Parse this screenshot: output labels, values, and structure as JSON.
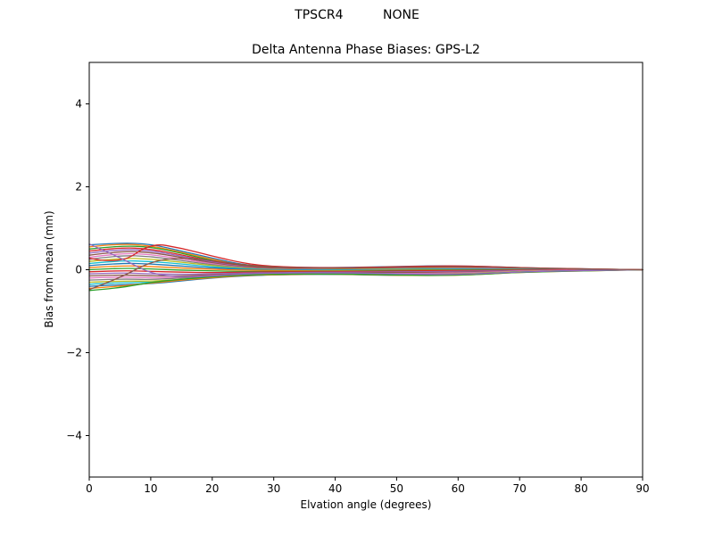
{
  "chart_data": {
    "type": "line",
    "suptitle": "TPSCR4          NONE",
    "title": "Delta Antenna Phase Biases: GPS-L2",
    "xlabel": "Elvation angle (degrees)",
    "ylabel": "Bias from mean (mm)",
    "xlim": [
      0,
      90
    ],
    "ylim": [
      -5,
      5
    ],
    "xticks": [
      0,
      10,
      20,
      30,
      40,
      50,
      60,
      70,
      80,
      90
    ],
    "yticks": [
      -4,
      -2,
      0,
      2,
      4
    ],
    "grid": false,
    "legend": "none",
    "palette": [
      "#1f77b4",
      "#ff7f0e",
      "#2ca02c",
      "#d62728",
      "#9467bd",
      "#8c564b",
      "#e377c2",
      "#7f7f7f",
      "#bcbd22",
      "#17becf"
    ],
    "x": [
      0,
      5,
      10,
      15,
      20,
      25,
      30,
      40,
      50,
      60,
      70,
      80,
      90
    ],
    "series": [
      {
        "values": [
          0.6,
          0.65,
          0.62,
          0.45,
          0.28,
          0.12,
          0.06,
          0.05,
          0.08,
          0.1,
          0.05,
          0.02,
          0.0
        ]
      },
      {
        "values": [
          0.55,
          0.63,
          0.58,
          0.42,
          0.25,
          0.1,
          0.05,
          0.04,
          0.07,
          0.09,
          0.04,
          0.02,
          0.0
        ]
      },
      {
        "values": [
          0.5,
          0.58,
          0.55,
          0.4,
          0.22,
          0.09,
          0.04,
          0.03,
          0.06,
          0.08,
          0.04,
          0.01,
          0.0
        ]
      },
      {
        "values": [
          0.45,
          0.54,
          0.5,
          0.36,
          0.2,
          0.08,
          0.03,
          0.02,
          0.05,
          0.07,
          0.03,
          0.01,
          0.0
        ]
      },
      {
        "values": [
          0.4,
          0.5,
          0.46,
          0.33,
          0.18,
          0.07,
          0.02,
          0.02,
          0.05,
          0.06,
          0.03,
          0.01,
          0.0
        ]
      },
      {
        "values": [
          0.35,
          0.45,
          0.42,
          0.3,
          0.16,
          0.06,
          0.02,
          0.01,
          0.04,
          0.05,
          0.02,
          0.01,
          0.0
        ]
      },
      {
        "values": [
          0.3,
          0.4,
          0.37,
          0.26,
          0.14,
          0.05,
          0.01,
          0.01,
          0.03,
          0.04,
          0.02,
          0.01,
          0.0
        ]
      },
      {
        "values": [
          0.25,
          0.35,
          0.32,
          0.22,
          0.12,
          0.04,
          0.01,
          0.0,
          0.02,
          0.03,
          0.01,
          0.0,
          0.0
        ]
      },
      {
        "values": [
          0.2,
          0.28,
          0.26,
          0.18,
          0.1,
          0.03,
          0.0,
          0.0,
          0.02,
          0.03,
          0.01,
          0.0,
          0.0
        ]
      },
      {
        "values": [
          0.15,
          0.22,
          0.2,
          0.14,
          0.07,
          0.02,
          0.0,
          -0.01,
          0.01,
          0.02,
          0.01,
          0.0,
          0.0
        ]
      },
      {
        "values": [
          0.1,
          0.16,
          0.14,
          0.09,
          0.04,
          0.01,
          -0.01,
          -0.02,
          0.0,
          0.01,
          0.0,
          0.0,
          0.0
        ]
      },
      {
        "values": [
          0.05,
          0.1,
          0.08,
          0.04,
          0.01,
          -0.01,
          -0.02,
          -0.03,
          -0.01,
          0.0,
          0.0,
          0.0,
          0.0
        ]
      },
      {
        "values": [
          0.0,
          0.04,
          0.02,
          -0.01,
          -0.03,
          -0.04,
          -0.04,
          -0.04,
          -0.02,
          -0.01,
          0.0,
          0.0,
          0.0
        ]
      },
      {
        "values": [
          -0.05,
          -0.02,
          -0.04,
          -0.06,
          -0.07,
          -0.06,
          -0.05,
          -0.05,
          -0.03,
          -0.02,
          -0.01,
          0.0,
          0.0
        ]
      },
      {
        "values": [
          -0.1,
          -0.07,
          -0.1,
          -0.11,
          -0.1,
          -0.08,
          -0.07,
          -0.06,
          -0.05,
          -0.04,
          -0.02,
          -0.01,
          0.0
        ]
      },
      {
        "values": [
          -0.15,
          -0.12,
          -0.15,
          -0.15,
          -0.12,
          -0.1,
          -0.08,
          -0.07,
          -0.07,
          -0.06,
          -0.03,
          -0.01,
          0.0
        ]
      },
      {
        "values": [
          -0.2,
          -0.17,
          -0.2,
          -0.18,
          -0.14,
          -0.11,
          -0.09,
          -0.08,
          -0.09,
          -0.08,
          -0.03,
          -0.01,
          0.0
        ]
      },
      {
        "values": [
          -0.25,
          -0.22,
          -0.24,
          -0.2,
          -0.16,
          -0.12,
          -0.1,
          -0.09,
          -0.11,
          -0.1,
          -0.04,
          -0.02,
          0.0
        ]
      },
      {
        "values": [
          -0.3,
          -0.27,
          -0.28,
          -0.23,
          -0.18,
          -0.13,
          -0.11,
          -0.1,
          -0.12,
          -0.11,
          -0.04,
          -0.02,
          0.0
        ]
      },
      {
        "values": [
          -0.35,
          -0.31,
          -0.31,
          -0.25,
          -0.19,
          -0.14,
          -0.12,
          -0.1,
          -0.13,
          -0.12,
          -0.05,
          -0.02,
          0.0
        ]
      },
      {
        "values": [
          -0.4,
          -0.36,
          -0.34,
          -0.27,
          -0.2,
          -0.15,
          -0.12,
          -0.11,
          -0.14,
          -0.13,
          -0.05,
          -0.02,
          0.0
        ]
      },
      {
        "values": [
          -0.45,
          -0.4,
          -0.32,
          -0.25,
          -0.19,
          -0.14,
          -0.12,
          -0.1,
          -0.14,
          -0.14,
          -0.06,
          -0.03,
          0.0
        ]
      },
      {
        "values": [
          -0.5,
          -0.44,
          -0.3,
          -0.23,
          -0.17,
          -0.13,
          -0.11,
          -0.1,
          -0.13,
          -0.14,
          -0.06,
          -0.03,
          0.0
        ]
      },
      {
        "values": [
          0.28,
          0.12,
          0.65,
          0.52,
          0.33,
          0.16,
          0.07,
          0.04,
          0.07,
          0.1,
          0.05,
          0.02,
          0.0
        ]
      },
      {
        "values": [
          0.62,
          0.3,
          -0.1,
          -0.18,
          -0.15,
          -0.1,
          -0.08,
          -0.07,
          -0.1,
          -0.12,
          -0.05,
          -0.02,
          0.0
        ]
      },
      {
        "values": [
          -0.48,
          -0.2,
          0.2,
          0.3,
          0.22,
          0.12,
          0.06,
          0.03,
          0.05,
          0.08,
          0.04,
          0.02,
          0.0
        ]
      }
    ]
  }
}
